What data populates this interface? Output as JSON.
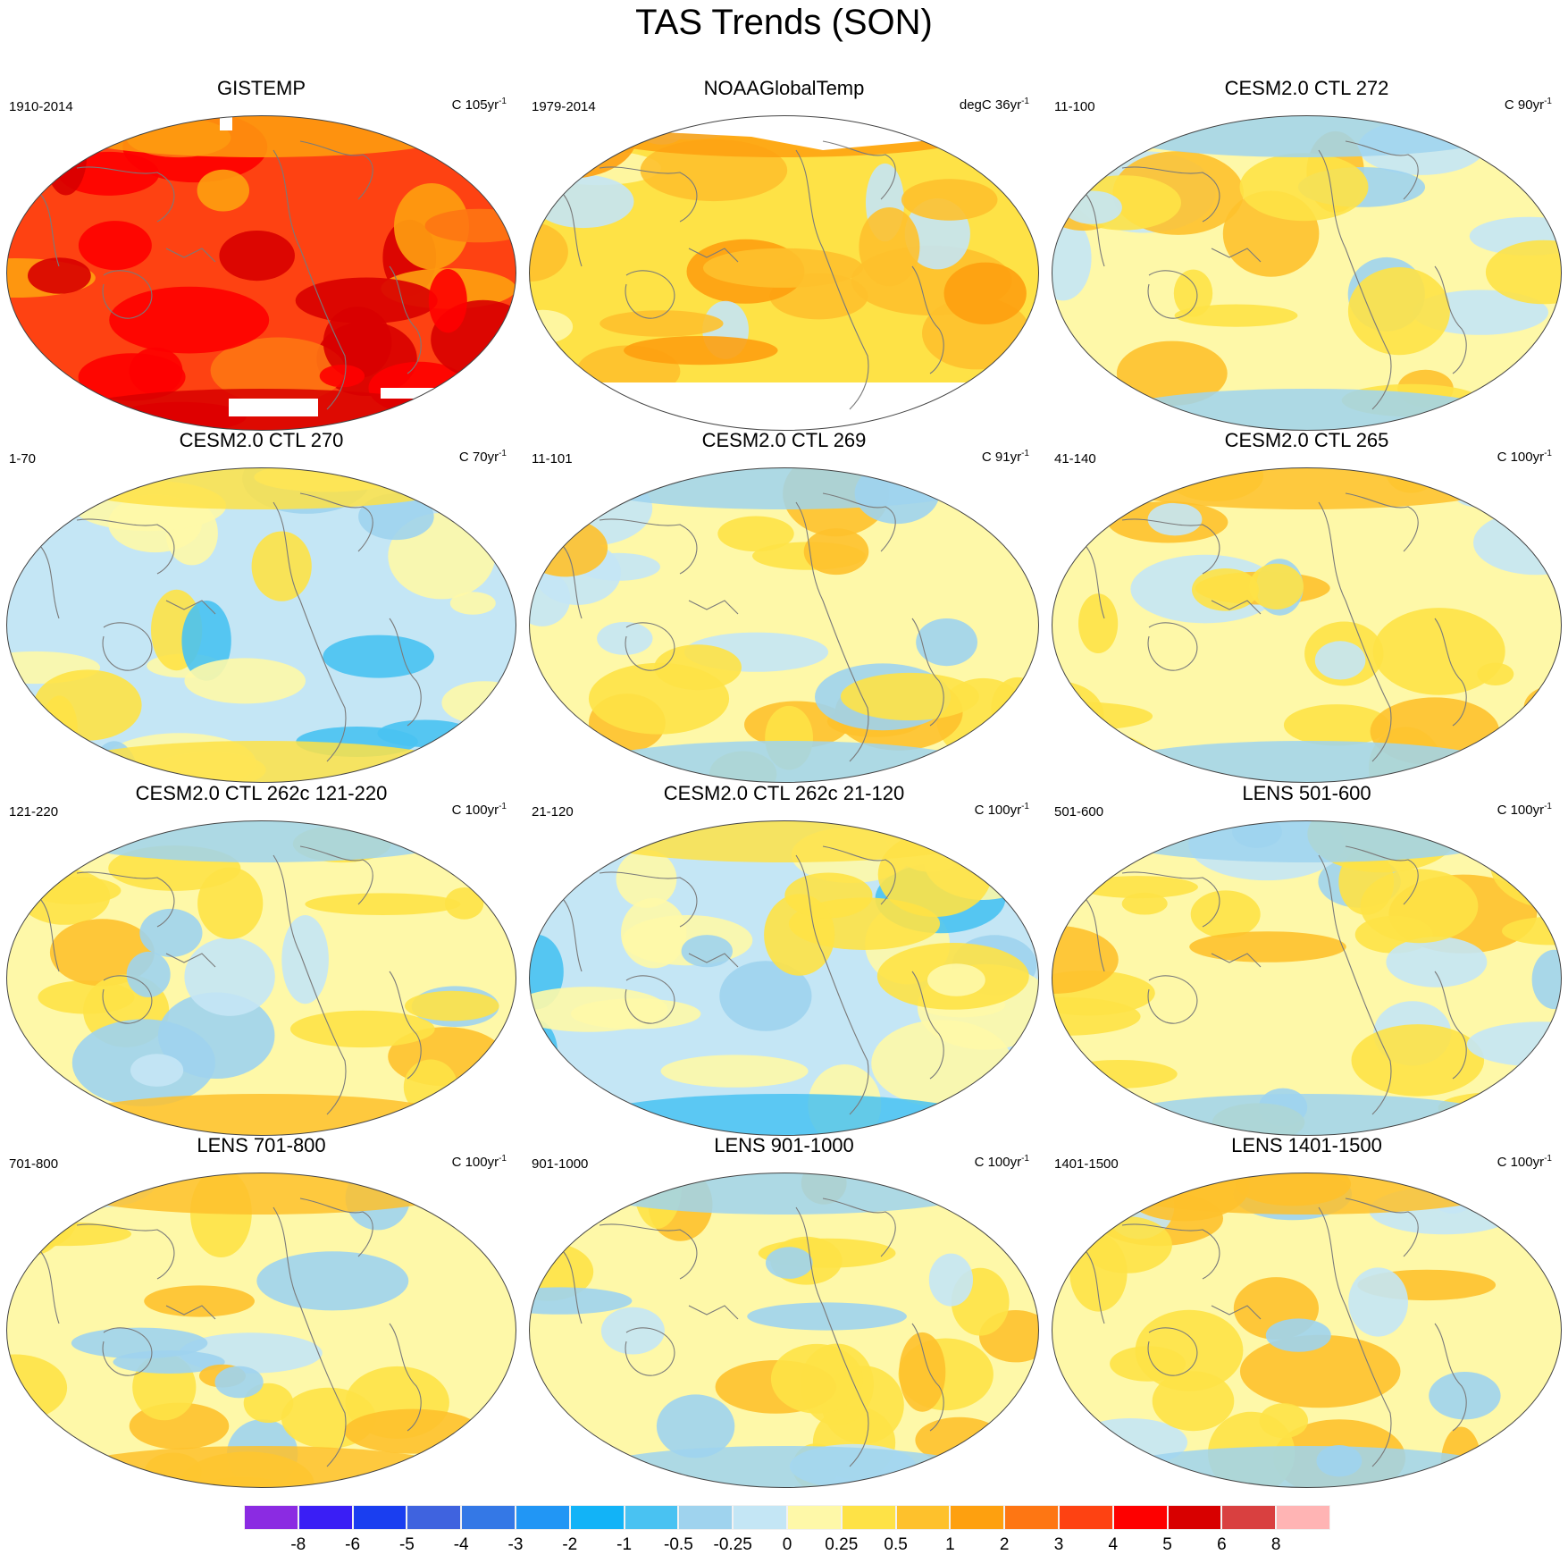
{
  "title": "TAS Trends (SON)",
  "colors": {
    "scale": [
      "#8b2be2",
      "#3a1ef5",
      "#1a3ef0",
      "#3f63df",
      "#3478e6",
      "#2196f5",
      "#12b3f7",
      "#49c2f2",
      "#9fd3ee",
      "#c4e6f5",
      "#fef8a8",
      "#fee246",
      "#fec12c",
      "#fea00f",
      "#fe7613",
      "#fe4212",
      "#fe0000",
      "#d80000",
      "#d94040",
      "#ffb4b4"
    ],
    "coastline": "#7a7a7a",
    "missing": "#ffffff"
  },
  "colorbar": {
    "labels": [
      "-8",
      "-6",
      "-5",
      "-4",
      "-3",
      "-2",
      "-1",
      "-0.5",
      "-0.25",
      "0",
      "0.25",
      "0.5",
      "1",
      "2",
      "3",
      "4",
      "5",
      "6",
      "8"
    ]
  },
  "panels": [
    {
      "title": "GISTEMP",
      "period": "1910-2014",
      "units": "C 105yr",
      "unit_exp": "-1",
      "base": 15,
      "missing": "both"
    },
    {
      "title": "NOAAGlobalTemp",
      "period": "1979-2014",
      "units": "degC 36yr",
      "unit_exp": "-1",
      "base": 11,
      "missing": "both"
    },
    {
      "title": "CESM2.0 CTL 272",
      "period": "11-100",
      "units": "C 90yr",
      "unit_exp": "-1",
      "base": 10,
      "missing": "none"
    },
    {
      "title": "CESM2.0 CTL 270",
      "period": "1-70",
      "units": "C 70yr",
      "unit_exp": "-1",
      "base": 9,
      "missing": "none"
    },
    {
      "title": "CESM2.0 CTL 269",
      "period": "11-101",
      "units": "C 91yr",
      "unit_exp": "-1",
      "base": 10,
      "missing": "none"
    },
    {
      "title": "CESM2.0 CTL 265",
      "period": "41-140",
      "units": "C 100yr",
      "unit_exp": "-1",
      "base": 10,
      "missing": "none"
    },
    {
      "title": "CESM2.0 CTL 262c 121-220",
      "period": "121-220",
      "units": "C 100yr",
      "unit_exp": "-1",
      "base": 10,
      "missing": "none"
    },
    {
      "title": "CESM2.0 CTL 262c 21-120",
      "period": "21-120",
      "units": "C 100yr",
      "unit_exp": "-1",
      "base": 9,
      "missing": "none"
    },
    {
      "title": "LENS 501-600",
      "period": "501-600",
      "units": "C 100yr",
      "unit_exp": "-1",
      "base": 10,
      "missing": "none"
    },
    {
      "title": "LENS 701-800",
      "period": "701-800",
      "units": "C 100yr",
      "unit_exp": "-1",
      "base": 10,
      "missing": "none"
    },
    {
      "title": "LENS 901-1000",
      "period": "901-1000",
      "units": "C 100yr",
      "unit_exp": "-1",
      "base": 10,
      "missing": "none"
    },
    {
      "title": "LENS 1401-1500",
      "period": "1401-1500",
      "units": "C 100yr",
      "unit_exp": "-1",
      "base": 10,
      "missing": "none"
    }
  ]
}
